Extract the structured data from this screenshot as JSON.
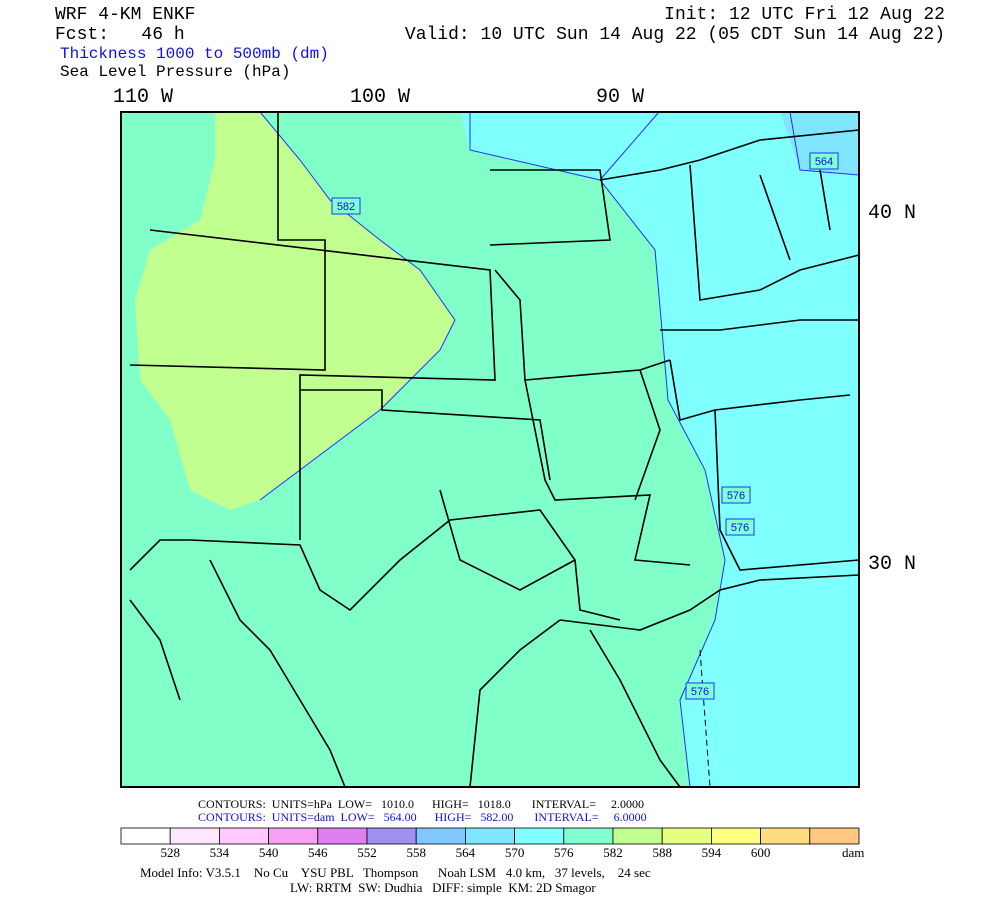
{
  "header": {
    "model": "WRF 4-KM ENKF",
    "forecast": "Fcst:   46 h",
    "init": "Init: 12 UTC Fri 12 Aug 22",
    "valid": "Valid: 10 UTC Sun 14 Aug 22 (05 CDT Sun 14 Aug 22)",
    "field_1": "Thickness 1000 to 500mb (dm)",
    "field_2": "Sea Level Pressure (hPa)"
  },
  "map": {
    "longitude_labels": [
      "110 W",
      "100 W",
      "90 W"
    ],
    "latitude_labels": [
      "40 N",
      "30 N"
    ],
    "contour_labels": [
      "582",
      "564",
      "576",
      "576",
      "576"
    ]
  },
  "footer": {
    "contours_1": "CONTOURS:  UNITS=hPa  LOW=   1010.0      HIGH=   1018.0       INTERVAL=     2.0000",
    "contours_2": "CONTOURS:  UNITS=dam  LOW=   564.00      HIGH=   582.00       INTERVAL=     6.0000",
    "colorbar": {
      "colors": [
        "#ffffff",
        "#ffe6ff",
        "#ffc8ff",
        "#f5a0f5",
        "#e080f0",
        "#a090f0",
        "#80c8ff",
        "#80e6ff",
        "#80ffff",
        "#80ffd0",
        "#c0ff90",
        "#e6ff80",
        "#ffff80",
        "#ffdc80",
        "#ffc880"
      ],
      "labels": [
        "528",
        "534",
        "540",
        "546",
        "552",
        "558",
        "564",
        "570",
        "576",
        "582",
        "588",
        "594",
        "600"
      ],
      "unit": "dam"
    },
    "model_info_1": "Model Info: V3.5.1    No Cu    YSU PBL   Thompson      Noah LSM   4.0 km,   37 levels,    24 sec",
    "model_info_2": "LW: RRTM  SW: Dudhia   DIFF: simple  KM: 2D Smagor"
  }
}
